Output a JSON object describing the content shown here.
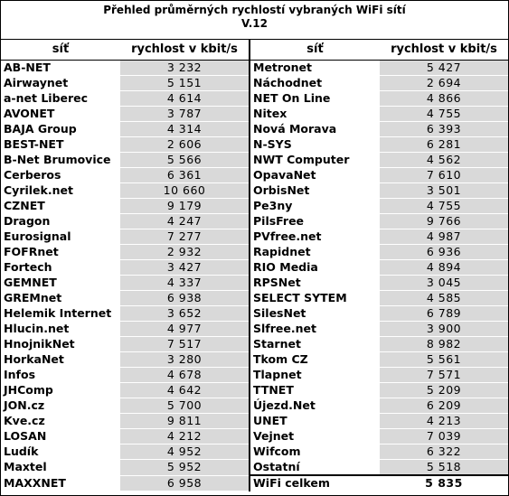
{
  "header": {
    "title": "Přehled průměrných rychlostí vybraných WiFi sítí",
    "subtitle": "V.12"
  },
  "table": {
    "columns": [
      "síť",
      "rychlost v kbit/s",
      "síť",
      "rychlost v kbit/s"
    ],
    "rows": [
      [
        "AB-NET",
        "3 232",
        "Metronet",
        "5 427"
      ],
      [
        "Airwaynet",
        "5 151",
        "Náchodnet",
        "2 694"
      ],
      [
        "a-net Liberec",
        "4 614",
        "NET On Line",
        "4 866"
      ],
      [
        "AVONET",
        "3 787",
        "Nitex",
        "4 755"
      ],
      [
        "BAJA Group",
        "4 314",
        "Nová Morava",
        "6 393"
      ],
      [
        "BEST-NET",
        "2 606",
        "N-SYS",
        "6 281"
      ],
      [
        "B-Net Brumovice",
        "5 566",
        "NWT Computer",
        "4 562"
      ],
      [
        "Cerberos",
        "6 361",
        "OpavaNet",
        "7 610"
      ],
      [
        "Cyrilek.net",
        "10 660",
        "OrbisNet",
        "3 501"
      ],
      [
        "CZNET",
        "9 179",
        "Pe3ny",
        "4 755"
      ],
      [
        "Dragon",
        "4 247",
        "PilsFree",
        "9 766"
      ],
      [
        "Eurosignal",
        "7 277",
        "PVfree.net",
        "4 987"
      ],
      [
        "FOFRnet",
        "2 932",
        "Rapidnet",
        "6 936"
      ],
      [
        "Fortech",
        "3 427",
        "RIO Media",
        "4 894"
      ],
      [
        "GEMNET",
        "4 337",
        "RPSNet",
        "3 045"
      ],
      [
        "GREMnet",
        "6 938",
        "SELECT SYTEM",
        "4 585"
      ],
      [
        "Helemik Internet",
        "3 652",
        "SilesNet",
        "6 789"
      ],
      [
        "Hlucin.net",
        "4 977",
        "Slfree.net",
        "3 900"
      ],
      [
        "HnojnikNet",
        "7 517",
        "Starnet",
        "8 982"
      ],
      [
        "HorkaNet",
        "3 280",
        "Tkom CZ",
        "5 561"
      ],
      [
        "Infos",
        "4 678",
        "Tlapnet",
        "7 571"
      ],
      [
        "JHComp",
        "4 642",
        "TTNET",
        "5 209"
      ],
      [
        "JON.cz",
        "5 700",
        "Újezd.Net",
        "6 209"
      ],
      [
        "Kve.cz",
        "9 811",
        "UNET",
        "4 213"
      ],
      [
        "LOSAN",
        "4 212",
        "Vejnet",
        "7 039"
      ],
      [
        "Ludík",
        "4 952",
        "Wifcom",
        "6 322"
      ],
      [
        "Maxtel",
        "5 952",
        "Ostatní",
        "5 518"
      ],
      [
        "MAXXNET",
        "6 958",
        "WiFi celkem",
        "5 835"
      ]
    ]
  }
}
